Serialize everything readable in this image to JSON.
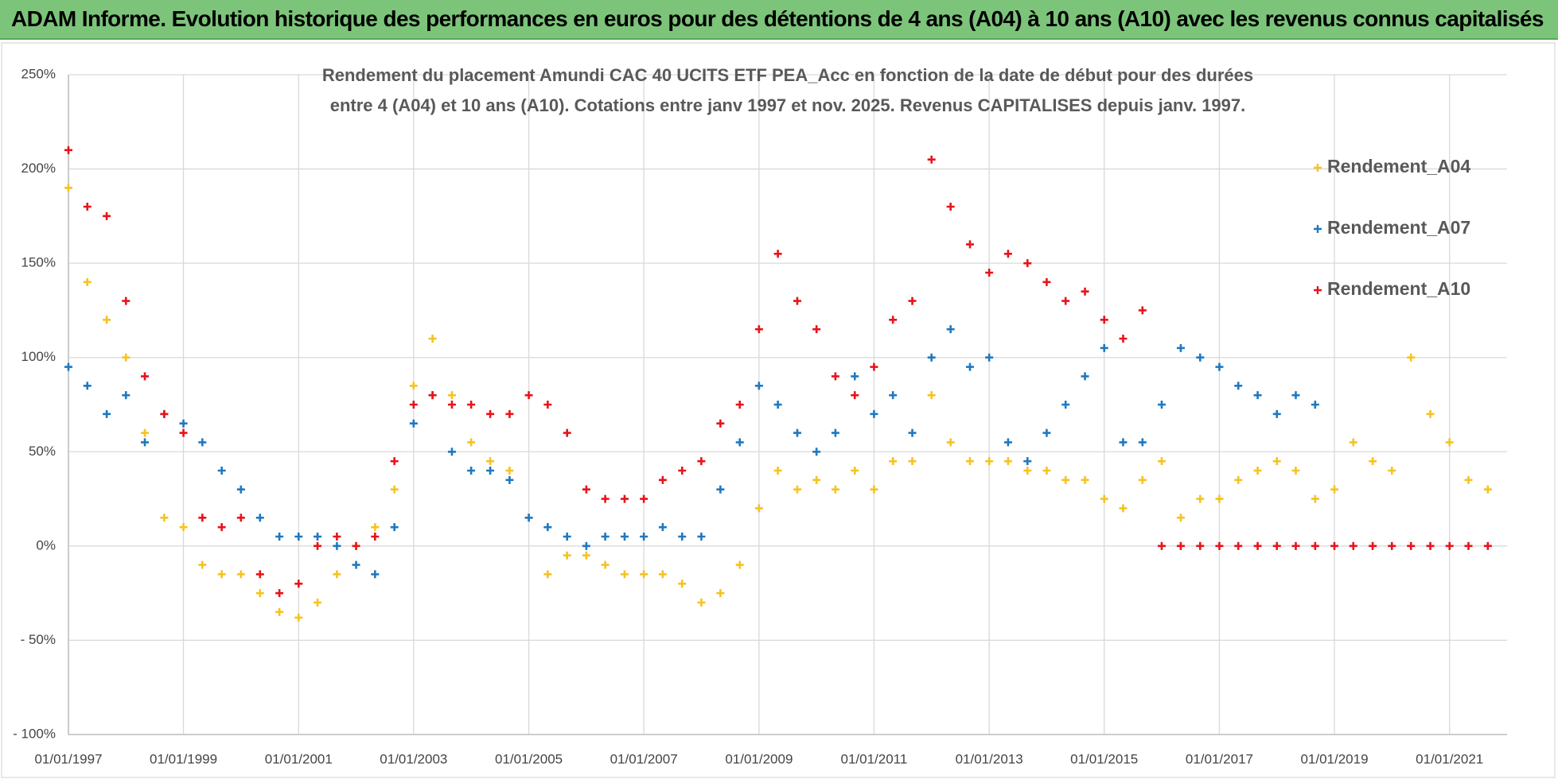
{
  "header": {
    "title": "ADAM Informe. Evolution historique des performances en euros pour des détentions de 4 ans (A04) à 10 ans (A10) avec les revenus connus capitalisés"
  },
  "chart_data": {
    "type": "scatter",
    "title": [
      "Rendement du placement Amundi CAC 40 UCITS ETF PEA_Acc en fonction de la date de début pour des durées",
      "entre 4 (A04) et 10 ans (A10).  Cotations entre janv 1997 et nov. 2025. Revenus CAPITALISES depuis janv. 1997."
    ],
    "x": [
      "1997-01-01",
      "1997-05-01",
      "1997-09-01",
      "1998-01-01",
      "1998-05-01",
      "1998-09-01",
      "1999-01-01",
      "1999-05-01",
      "1999-09-01",
      "2000-01-01",
      "2000-05-01",
      "2000-09-01",
      "2001-01-01",
      "2001-05-01",
      "2001-09-01",
      "2002-01-01",
      "2002-05-01",
      "2002-09-01",
      "2003-01-01",
      "2003-05-01",
      "2003-09-01",
      "2004-01-01",
      "2004-05-01",
      "2004-09-01",
      "2005-01-01",
      "2005-05-01",
      "2005-09-01",
      "2006-01-01",
      "2006-05-01",
      "2006-09-01",
      "2007-01-01",
      "2007-05-01",
      "2007-09-01",
      "2008-01-01",
      "2008-05-01",
      "2008-09-01",
      "2009-01-01",
      "2009-05-01",
      "2009-09-01",
      "2010-01-01",
      "2010-05-01",
      "2010-09-01",
      "2011-01-01",
      "2011-05-01",
      "2011-09-01",
      "2012-01-01",
      "2012-05-01",
      "2012-09-01",
      "2013-01-01",
      "2013-05-01",
      "2013-09-01",
      "2014-01-01",
      "2014-05-01",
      "2014-09-01",
      "2015-01-01",
      "2015-05-01",
      "2015-09-01",
      "2016-01-01",
      "2016-05-01",
      "2016-09-01",
      "2017-01-01",
      "2017-05-01",
      "2017-09-01",
      "2018-01-01",
      "2018-05-01",
      "2018-09-01",
      "2019-01-01",
      "2019-05-01",
      "2019-09-01",
      "2020-01-01",
      "2020-05-01",
      "2020-09-01",
      "2021-01-01",
      "2021-05-01",
      "2021-09-01"
    ],
    "series": [
      {
        "name": "Rendement_A04",
        "color": "#f5c321",
        "values": [
          190,
          140,
          120,
          100,
          60,
          15,
          10,
          -10,
          -15,
          -15,
          -25,
          -35,
          -38,
          -30,
          -15,
          0,
          10,
          30,
          85,
          110,
          80,
          55,
          45,
          40,
          15,
          -15,
          -5,
          -5,
          -10,
          -15,
          -15,
          -15,
          -20,
          -30,
          -25,
          -10,
          20,
          40,
          30,
          35,
          30,
          40,
          30,
          45,
          45,
          80,
          55,
          45,
          45,
          45,
          40,
          40,
          35,
          35,
          25,
          20,
          35,
          45,
          15,
          25,
          25,
          35,
          40,
          45,
          40,
          25,
          30,
          55,
          45,
          40,
          100,
          70,
          55,
          35,
          30
        ]
      },
      {
        "name": "Rendement_A07",
        "color": "#1f78c1",
        "values": [
          95,
          85,
          70,
          80,
          55,
          70,
          65,
          55,
          40,
          30,
          15,
          5,
          5,
          5,
          0,
          -10,
          -15,
          10,
          65,
          80,
          50,
          40,
          40,
          35,
          15,
          10,
          5,
          0,
          5,
          5,
          5,
          10,
          5,
          5,
          30,
          55,
          85,
          75,
          60,
          50,
          60,
          90,
          70,
          80,
          60,
          100,
          115,
          95,
          100,
          55,
          45,
          60,
          75,
          90,
          105,
          55,
          55,
          75,
          105,
          100,
          95,
          85,
          80,
          70,
          80,
          75,
          null,
          null,
          null,
          null,
          null,
          null,
          null,
          null,
          null
        ]
      },
      {
        "name": "Rendement_A10",
        "color": "#e8131b",
        "values": [
          210,
          180,
          175,
          130,
          90,
          70,
          60,
          15,
          10,
          15,
          -15,
          -25,
          -20,
          0,
          5,
          0,
          5,
          45,
          75,
          80,
          75,
          75,
          70,
          70,
          80,
          75,
          60,
          30,
          25,
          25,
          25,
          35,
          40,
          45,
          65,
          75,
          115,
          155,
          130,
          115,
          90,
          80,
          95,
          120,
          130,
          205,
          180,
          160,
          145,
          155,
          150,
          140,
          130,
          135,
          120,
          110,
          125,
          0,
          0,
          0,
          0,
          0,
          0,
          0,
          0,
          0,
          0,
          0,
          0,
          0,
          0,
          0,
          0,
          0,
          0
        ]
      }
    ],
    "xlim": [
      "1997-01-01",
      "2022-01-01"
    ],
    "xticks": [
      {
        "value": "1997-01-01",
        "label": "01/01/1997"
      },
      {
        "value": "1999-01-01",
        "label": "01/01/1999"
      },
      {
        "value": "2001-01-01",
        "label": "01/01/2001"
      },
      {
        "value": "2003-01-01",
        "label": "01/01/2003"
      },
      {
        "value": "2005-01-01",
        "label": "01/01/2005"
      },
      {
        "value": "2007-01-01",
        "label": "01/01/2007"
      },
      {
        "value": "2009-01-01",
        "label": "01/01/2009"
      },
      {
        "value": "2011-01-01",
        "label": "01/01/2011"
      },
      {
        "value": "2013-01-01",
        "label": "01/01/2013"
      },
      {
        "value": "2015-01-01",
        "label": "01/01/2015"
      },
      {
        "value": "2017-01-01",
        "label": "01/01/2017"
      },
      {
        "value": "2019-01-01",
        "label": "01/01/2019"
      },
      {
        "value": "2021-01-01",
        "label": "01/01/2021"
      }
    ],
    "ylim": [
      -100,
      250
    ],
    "yticks": [
      {
        "value": -100,
        "label": "- 100%"
      },
      {
        "value": -50,
        "label": "- 50%"
      },
      {
        "value": 0,
        "label": "0%"
      },
      {
        "value": 50,
        "label": "50%"
      },
      {
        "value": 100,
        "label": "100%"
      },
      {
        "value": 150,
        "label": "150%"
      },
      {
        "value": 200,
        "label": "200%"
      },
      {
        "value": 250,
        "label": "250%"
      }
    ],
    "grid": true,
    "legend": "right"
  }
}
